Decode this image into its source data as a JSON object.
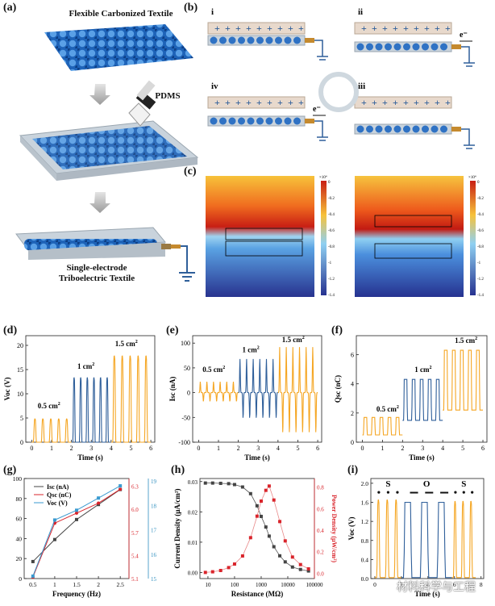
{
  "panels": {
    "a": {
      "label": "(a)",
      "title": "Flexible Carbonized Textile",
      "pdms": "PDMS",
      "caption_l1": "Single-electrode",
      "caption_l2": "Triboelectric Textile"
    },
    "b": {
      "label": "(b)",
      "steps": [
        "i",
        "ii",
        "iii",
        "iv"
      ],
      "electron": "e⁻"
    },
    "c": {
      "label": "(c)",
      "scale_exp": "×10⁴",
      "colorbar_ticks": [
        "0",
        "-0.2",
        "-0.4",
        "-0.6",
        "-0.8",
        "-1",
        "-1.2",
        "-1.4"
      ]
    },
    "d": {
      "label": "(d)"
    },
    "e": {
      "label": "(e)"
    },
    "f": {
      "label": "(f)"
    },
    "g": {
      "label": "(g)"
    },
    "h": {
      "label": "(h)"
    },
    "i": {
      "label": "(i)",
      "sequence": [
        "S",
        "O",
        "S"
      ]
    }
  },
  "colors": {
    "orange": "#f5a623",
    "blue": "#2f5f9a",
    "red": "#d9242b",
    "grey": "#555555"
  },
  "watermark": "材料科学与工程",
  "chart_data": [
    {
      "id": "d",
      "type": "line",
      "ylabel": "Voc (V)",
      "xlabel": "Time (s)",
      "xlim": [
        -0.3,
        6.2
      ],
      "ylim": [
        0,
        22
      ],
      "xticks": [
        0,
        1,
        2,
        3,
        4,
        5,
        6
      ],
      "yticks": [
        0,
        5,
        10,
        15,
        20
      ],
      "series": [
        {
          "name": "0.5 cm²",
          "x_range": [
            0,
            2
          ],
          "peak": 4.8,
          "base": 0
        },
        {
          "name": "1 cm²",
          "x_range": [
            2,
            4
          ],
          "peak": 13.3,
          "base": 0
        },
        {
          "name": "1.5 cm²",
          "x_range": [
            4,
            6
          ],
          "peak": 17.8,
          "base": 0
        }
      ],
      "annotations": [
        {
          "text": "0.5 cm",
          "sup": "2",
          "x": 0.3,
          "y": 7
        },
        {
          "text": "1 cm",
          "sup": "2",
          "x": 2.3,
          "y": 15.2
        },
        {
          "text": "1.5 cm",
          "sup": "2",
          "x": 4.2,
          "y": 19.8
        }
      ]
    },
    {
      "id": "e",
      "type": "line",
      "ylabel": "Isc (nA)",
      "xlabel": "Time (s)",
      "xlim": [
        -0.3,
        6.2
      ],
      "ylim": [
        -100,
        115
      ],
      "xticks": [
        0,
        1,
        2,
        3,
        4,
        5,
        6
      ],
      "yticks": [
        -100,
        -50,
        0,
        50,
        100
      ],
      "series": [
        {
          "name": "0.5 cm²",
          "x_range": [
            0,
            2
          ],
          "peak": 22,
          "trough": -18
        },
        {
          "name": "1 cm²",
          "x_range": [
            2,
            4
          ],
          "peak": 68,
          "trough": -52
        },
        {
          "name": "1.5 cm²",
          "x_range": [
            4,
            6
          ],
          "peak": 92,
          "trough": -82
        }
      ],
      "annotations": [
        {
          "text": "0.5 cm",
          "sup": "2",
          "x": 0.2,
          "y": 42
        },
        {
          "text": "1 cm",
          "sup": "2",
          "x": 2.2,
          "y": 82
        },
        {
          "text": "1.5 cm",
          "sup": "2",
          "x": 4.2,
          "y": 102
        }
      ]
    },
    {
      "id": "f",
      "type": "line",
      "ylabel": "Qsc (nC)",
      "xlabel": "Time (s)",
      "xlim": [
        -0.3,
        6.2
      ],
      "ylim": [
        0,
        7.3
      ],
      "xticks": [
        0,
        1,
        2,
        3,
        4,
        5,
        6
      ],
      "yticks": [
        0,
        2,
        4,
        6
      ],
      "series": [
        {
          "name": "0.5 cm²",
          "x_range": [
            0,
            2
          ],
          "peak": 1.7,
          "base": 0.5
        },
        {
          "name": "1 cm²",
          "x_range": [
            2,
            4
          ],
          "peak": 4.3,
          "base": 1.5
        },
        {
          "name": "1.5 cm²",
          "x_range": [
            4,
            6
          ],
          "peak": 6.3,
          "base": 2.2
        }
      ],
      "annotations": [
        {
          "text": "0.5 cm",
          "sup": "2",
          "x": 0.7,
          "y": 2.1
        },
        {
          "text": "1 cm",
          "sup": "2",
          "x": 2.6,
          "y": 4.8
        },
        {
          "text": "1.5 cm",
          "sup": "2",
          "x": 4.6,
          "y": 6.8
        }
      ]
    },
    {
      "id": "g",
      "type": "line",
      "xlabel": "Frequency (Hz)",
      "ylabel": "",
      "xlim": [
        0.3,
        2.7
      ],
      "ylim": [
        0,
        100
      ],
      "xticks": [
        0.5,
        1.0,
        1.5,
        2.0,
        2.5
      ],
      "yticks": [
        0,
        20,
        40,
        60,
        80,
        100
      ],
      "x": [
        0.5,
        1.0,
        1.5,
        2.0,
        2.5
      ],
      "series": [
        {
          "name": "Isc (nA)",
          "axis": "left",
          "values": [
            17,
            39,
            59,
            74,
            89
          ]
        },
        {
          "name": "Qsc (nC)",
          "axis": "right1",
          "values": [
            5.12,
            5.82,
            5.95,
            6.08,
            6.26
          ]
        },
        {
          "name": "Voc (V)",
          "axis": "right2",
          "values": [
            15.1,
            17.4,
            17.8,
            18.3,
            18.8
          ]
        }
      ],
      "right1": {
        "ylim": [
          5.1,
          6.4
        ],
        "ticks": [
          5.1,
          5.4,
          5.7,
          6.0,
          6.3
        ]
      },
      "right2": {
        "ylim": [
          15,
          19.1
        ],
        "ticks": [
          15,
          16,
          17,
          18,
          19
        ]
      }
    },
    {
      "id": "h",
      "type": "line",
      "xlabel": "Resistance (MΩ)",
      "ylabel": "Current Density (μA/cm²)",
      "ylabel2": "Power Density (μW/cm²)",
      "xscale": "log",
      "xlim": [
        5,
        100000
      ],
      "ylim": [
        -0.002,
        0.031
      ],
      "y2lim": [
        -0.05,
        0.88
      ],
      "xticks": [
        10,
        100,
        1000,
        10000,
        100000
      ],
      "xticklabels": [
        "10",
        "100",
        "1000",
        "10000",
        "100000"
      ],
      "yticks": [
        0,
        0.01,
        0.02,
        0.03
      ],
      "yticklabels": [
        "0.00",
        "0.01",
        "0.02",
        "0.03"
      ],
      "y2ticks": [
        0,
        0.2,
        0.4,
        0.6,
        0.8
      ],
      "y2ticklabels": [
        "0.0",
        "0.2",
        "0.4",
        "0.6",
        "0.8"
      ],
      "x": [
        8,
        15,
        30,
        60,
        100,
        200,
        400,
        700,
        1000,
        1500,
        2000,
        3000,
        5000,
        8000,
        15000,
        30000,
        60000
      ],
      "series": [
        {
          "name": "Current Density",
          "axis": "left",
          "values": [
            0.0295,
            0.0295,
            0.0294,
            0.0293,
            0.029,
            0.0282,
            0.026,
            0.022,
            0.0185,
            0.015,
            0.012,
            0.0085,
            0.0055,
            0.0035,
            0.0018,
            0.001,
            0.0005
          ]
        },
        {
          "name": "Power Density",
          "axis": "right",
          "values": [
            0.007,
            0.013,
            0.025,
            0.052,
            0.085,
            0.16,
            0.33,
            0.53,
            0.67,
            0.77,
            0.81,
            0.68,
            0.48,
            0.3,
            0.15,
            0.08,
            0.04
          ]
        }
      ]
    },
    {
      "id": "i",
      "type": "line",
      "xlabel": "Time (s)",
      "ylabel": "Voc (V)",
      "xlim": [
        -0.3,
        8.2
      ],
      "ylim": [
        0,
        2.1
      ],
      "xticks": [
        0,
        2,
        4,
        6,
        8
      ],
      "yticks": [
        0,
        0.4,
        0.8,
        1.2,
        1.6,
        2.0
      ],
      "yticklabels": [
        "0.0",
        "0.4",
        "0.8",
        "1.2",
        "1.6",
        "2.0"
      ],
      "series": [
        {
          "name": "S",
          "x_range": [
            0,
            2
          ],
          "peak": 1.65,
          "color": "orange"
        },
        {
          "name": "O",
          "x_range": [
            2,
            5.8
          ],
          "peak": 1.6,
          "color": "blue"
        },
        {
          "name": "S",
          "x_range": [
            5.8,
            7.6
          ],
          "peak": 1.62,
          "color": "orange"
        }
      ]
    }
  ]
}
